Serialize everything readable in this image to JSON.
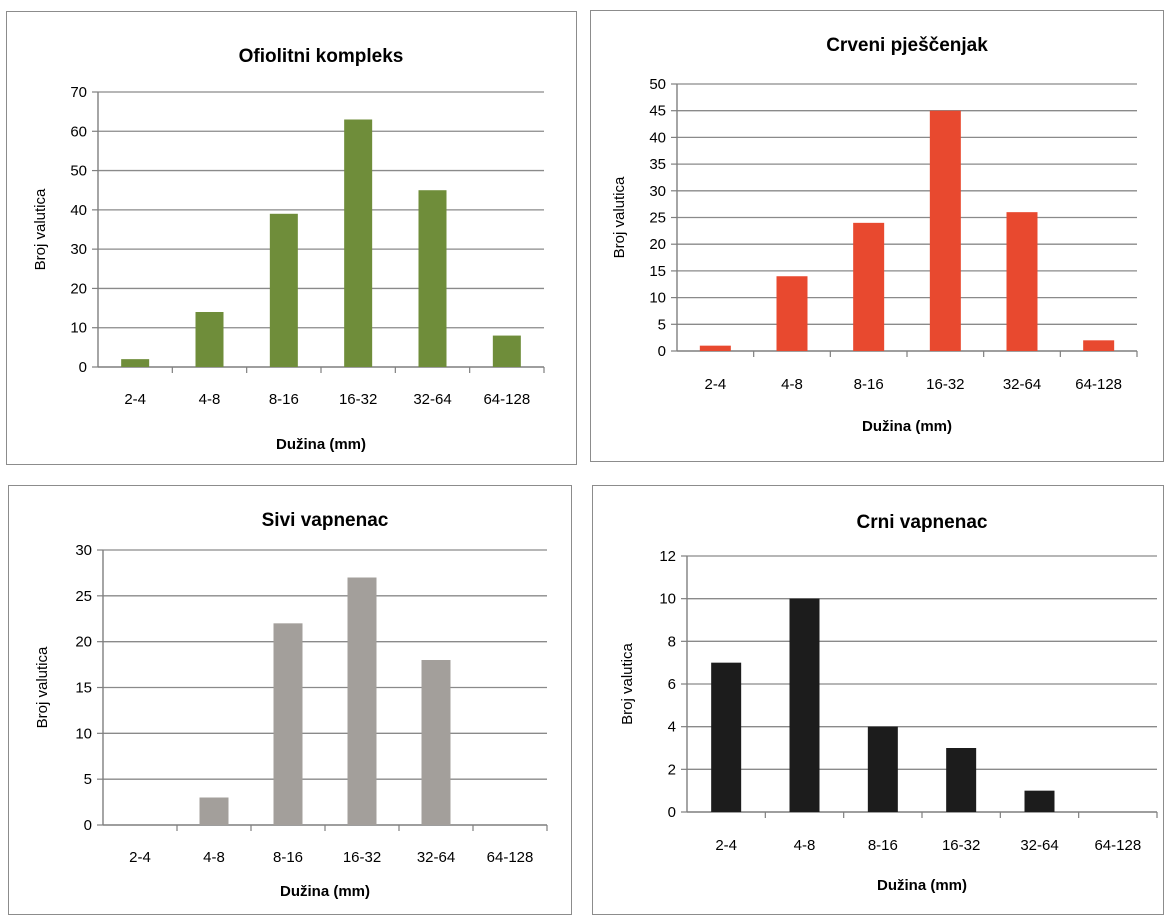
{
  "chart_data": [
    {
      "type": "bar",
      "title": "Ofiolitni kompleks",
      "xlabel": "Dužina (mm)",
      "ylabel": "Broj valutica",
      "categories": [
        "2-4",
        "4-8",
        "8-16",
        "16-32",
        "32-64",
        "64-128"
      ],
      "values": [
        2,
        14,
        39,
        63,
        45,
        8
      ],
      "ylim": [
        0,
        70
      ],
      "yticks": [
        0,
        10,
        20,
        30,
        40,
        50,
        60,
        70
      ],
      "grid": true,
      "color": "#6f8d3a"
    },
    {
      "type": "bar",
      "title": "Crveni pješčenjak",
      "xlabel": "Dužina (mm)",
      "ylabel": "Broj valutica",
      "categories": [
        "2-4",
        "4-8",
        "8-16",
        "16-32",
        "32-64",
        "64-128"
      ],
      "values": [
        1,
        14,
        24,
        45,
        26,
        2
      ],
      "ylim": [
        0,
        50
      ],
      "yticks": [
        0,
        5,
        10,
        15,
        20,
        25,
        30,
        35,
        40,
        45,
        50
      ],
      "grid": true,
      "color": "#e8492f"
    },
    {
      "type": "bar",
      "title": "Sivi vapnenac",
      "xlabel": "Dužina (mm)",
      "ylabel": "Broj valutica",
      "categories": [
        "2-4",
        "4-8",
        "8-16",
        "16-32",
        "32-64",
        "64-128"
      ],
      "values": [
        0,
        3,
        22,
        27,
        18,
        0
      ],
      "ylim": [
        0,
        30
      ],
      "yticks": [
        0,
        5,
        10,
        15,
        20,
        25,
        30
      ],
      "grid": true,
      "color": "#a39f9b"
    },
    {
      "type": "bar",
      "title": "Crni vapnenac",
      "xlabel": "Dužina (mm)",
      "ylabel": "Broj valutica",
      "categories": [
        "2-4",
        "4-8",
        "8-16",
        "16-32",
        "32-64",
        "64-128"
      ],
      "values": [
        7,
        10,
        4,
        3,
        1,
        0
      ],
      "ylim": [
        0,
        12
      ],
      "yticks": [
        0,
        2,
        4,
        6,
        8,
        10,
        12
      ],
      "grid": true,
      "color": "#1c1c1c"
    }
  ]
}
